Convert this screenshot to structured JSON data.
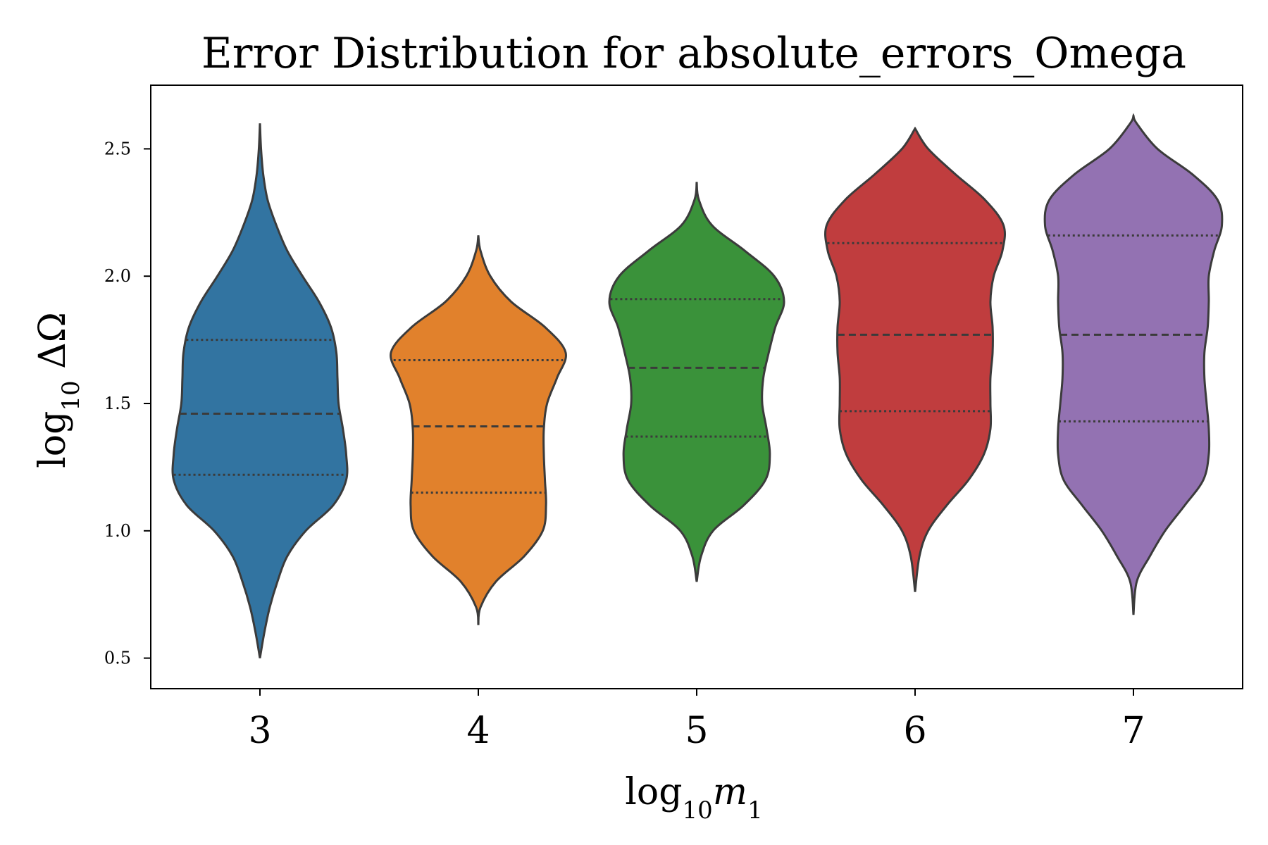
{
  "chart_data": {
    "type": "violin",
    "title": "Error Distribution for absolute_errors_Omega",
    "xlabel": {
      "main": "log",
      "sub": "10",
      "symbol": "m",
      "symbol_sub": "1"
    },
    "ylabel": {
      "main": "log",
      "sub": "10",
      "suffix": " ΔΩ"
    },
    "ylim": [
      0.38,
      2.75
    ],
    "yticks": [
      0.5,
      1.0,
      1.5,
      2.0,
      2.5
    ],
    "ytick_labels": [
      "0.5",
      "1.0",
      "1.5",
      "2.0",
      "2.5"
    ],
    "categories": [
      "3",
      "4",
      "5",
      "6",
      "7"
    ],
    "grid": false,
    "series": [
      {
        "category": "3",
        "color": "#3274a1",
        "q1": 1.22,
        "median": 1.46,
        "q3": 1.75,
        "min": 0.5,
        "max": 2.6,
        "profile": [
          [
            0.5,
            0.0
          ],
          [
            0.6,
            0.04
          ],
          [
            0.7,
            0.09
          ],
          [
            0.8,
            0.16
          ],
          [
            0.9,
            0.25
          ],
          [
            1.0,
            0.42
          ],
          [
            1.1,
            0.67
          ],
          [
            1.2,
            0.79
          ],
          [
            1.3,
            0.79
          ],
          [
            1.4,
            0.76
          ],
          [
            1.5,
            0.72
          ],
          [
            1.6,
            0.71
          ],
          [
            1.7,
            0.7
          ],
          [
            1.8,
            0.65
          ],
          [
            1.9,
            0.54
          ],
          [
            2.0,
            0.39
          ],
          [
            2.1,
            0.25
          ],
          [
            2.2,
            0.15
          ],
          [
            2.3,
            0.07
          ],
          [
            2.4,
            0.03
          ],
          [
            2.5,
            0.01
          ],
          [
            2.6,
            0.0
          ]
        ]
      },
      {
        "category": "4",
        "color": "#e1812c",
        "q1": 1.15,
        "median": 1.41,
        "q3": 1.67,
        "min": 0.63,
        "max": 2.16,
        "profile": [
          [
            0.63,
            0.0
          ],
          [
            0.7,
            0.02
          ],
          [
            0.8,
            0.16
          ],
          [
            0.9,
            0.42
          ],
          [
            1.0,
            0.59
          ],
          [
            1.1,
            0.62
          ],
          [
            1.2,
            0.61
          ],
          [
            1.3,
            0.6
          ],
          [
            1.4,
            0.6
          ],
          [
            1.5,
            0.63
          ],
          [
            1.6,
            0.72
          ],
          [
            1.7,
            0.8
          ],
          [
            1.8,
            0.61
          ],
          [
            1.9,
            0.3
          ],
          [
            2.0,
            0.11
          ],
          [
            2.1,
            0.02
          ],
          [
            2.16,
            0.0
          ]
        ]
      },
      {
        "category": "5",
        "color": "#3a923a",
        "q1": 1.37,
        "median": 1.64,
        "q3": 1.91,
        "min": 0.8,
        "max": 2.37,
        "profile": [
          [
            0.8,
            0.0
          ],
          [
            0.9,
            0.04
          ],
          [
            1.0,
            0.15
          ],
          [
            1.1,
            0.43
          ],
          [
            1.2,
            0.63
          ],
          [
            1.3,
            0.67
          ],
          [
            1.4,
            0.64
          ],
          [
            1.5,
            0.6
          ],
          [
            1.6,
            0.61
          ],
          [
            1.7,
            0.66
          ],
          [
            1.8,
            0.72
          ],
          [
            1.9,
            0.8
          ],
          [
            2.0,
            0.71
          ],
          [
            2.1,
            0.44
          ],
          [
            2.2,
            0.14
          ],
          [
            2.3,
            0.02
          ],
          [
            2.37,
            0.0
          ]
        ]
      },
      {
        "category": "6",
        "color": "#c03d3e",
        "q1": 1.47,
        "median": 1.77,
        "q3": 2.13,
        "min": 0.76,
        "max": 2.58,
        "profile": [
          [
            0.76,
            0.0
          ],
          [
            0.9,
            0.04
          ],
          [
            1.0,
            0.12
          ],
          [
            1.1,
            0.29
          ],
          [
            1.2,
            0.49
          ],
          [
            1.3,
            0.63
          ],
          [
            1.4,
            0.69
          ],
          [
            1.5,
            0.69
          ],
          [
            1.6,
            0.69
          ],
          [
            1.7,
            0.71
          ],
          [
            1.8,
            0.71
          ],
          [
            1.9,
            0.69
          ],
          [
            2.0,
            0.72
          ],
          [
            2.1,
            0.8
          ],
          [
            2.2,
            0.81
          ],
          [
            2.3,
            0.64
          ],
          [
            2.4,
            0.37
          ],
          [
            2.5,
            0.12
          ],
          [
            2.58,
            0.0
          ]
        ]
      },
      {
        "category": "7",
        "color": "#9372b2",
        "q1": 1.43,
        "median": 1.77,
        "q3": 2.16,
        "min": 0.67,
        "max": 2.63,
        "profile": [
          [
            0.67,
            0.0
          ],
          [
            0.8,
            0.03
          ],
          [
            0.9,
            0.15
          ],
          [
            1.0,
            0.29
          ],
          [
            1.1,
            0.47
          ],
          [
            1.2,
            0.64
          ],
          [
            1.3,
            0.69
          ],
          [
            1.4,
            0.69
          ],
          [
            1.5,
            0.67
          ],
          [
            1.6,
            0.65
          ],
          [
            1.7,
            0.65
          ],
          [
            1.8,
            0.68
          ],
          [
            1.9,
            0.69
          ],
          [
            2.0,
            0.69
          ],
          [
            2.1,
            0.74
          ],
          [
            2.2,
            0.81
          ],
          [
            2.3,
            0.77
          ],
          [
            2.4,
            0.54
          ],
          [
            2.5,
            0.22
          ],
          [
            2.6,
            0.03
          ],
          [
            2.63,
            0.0
          ]
        ]
      }
    ]
  }
}
